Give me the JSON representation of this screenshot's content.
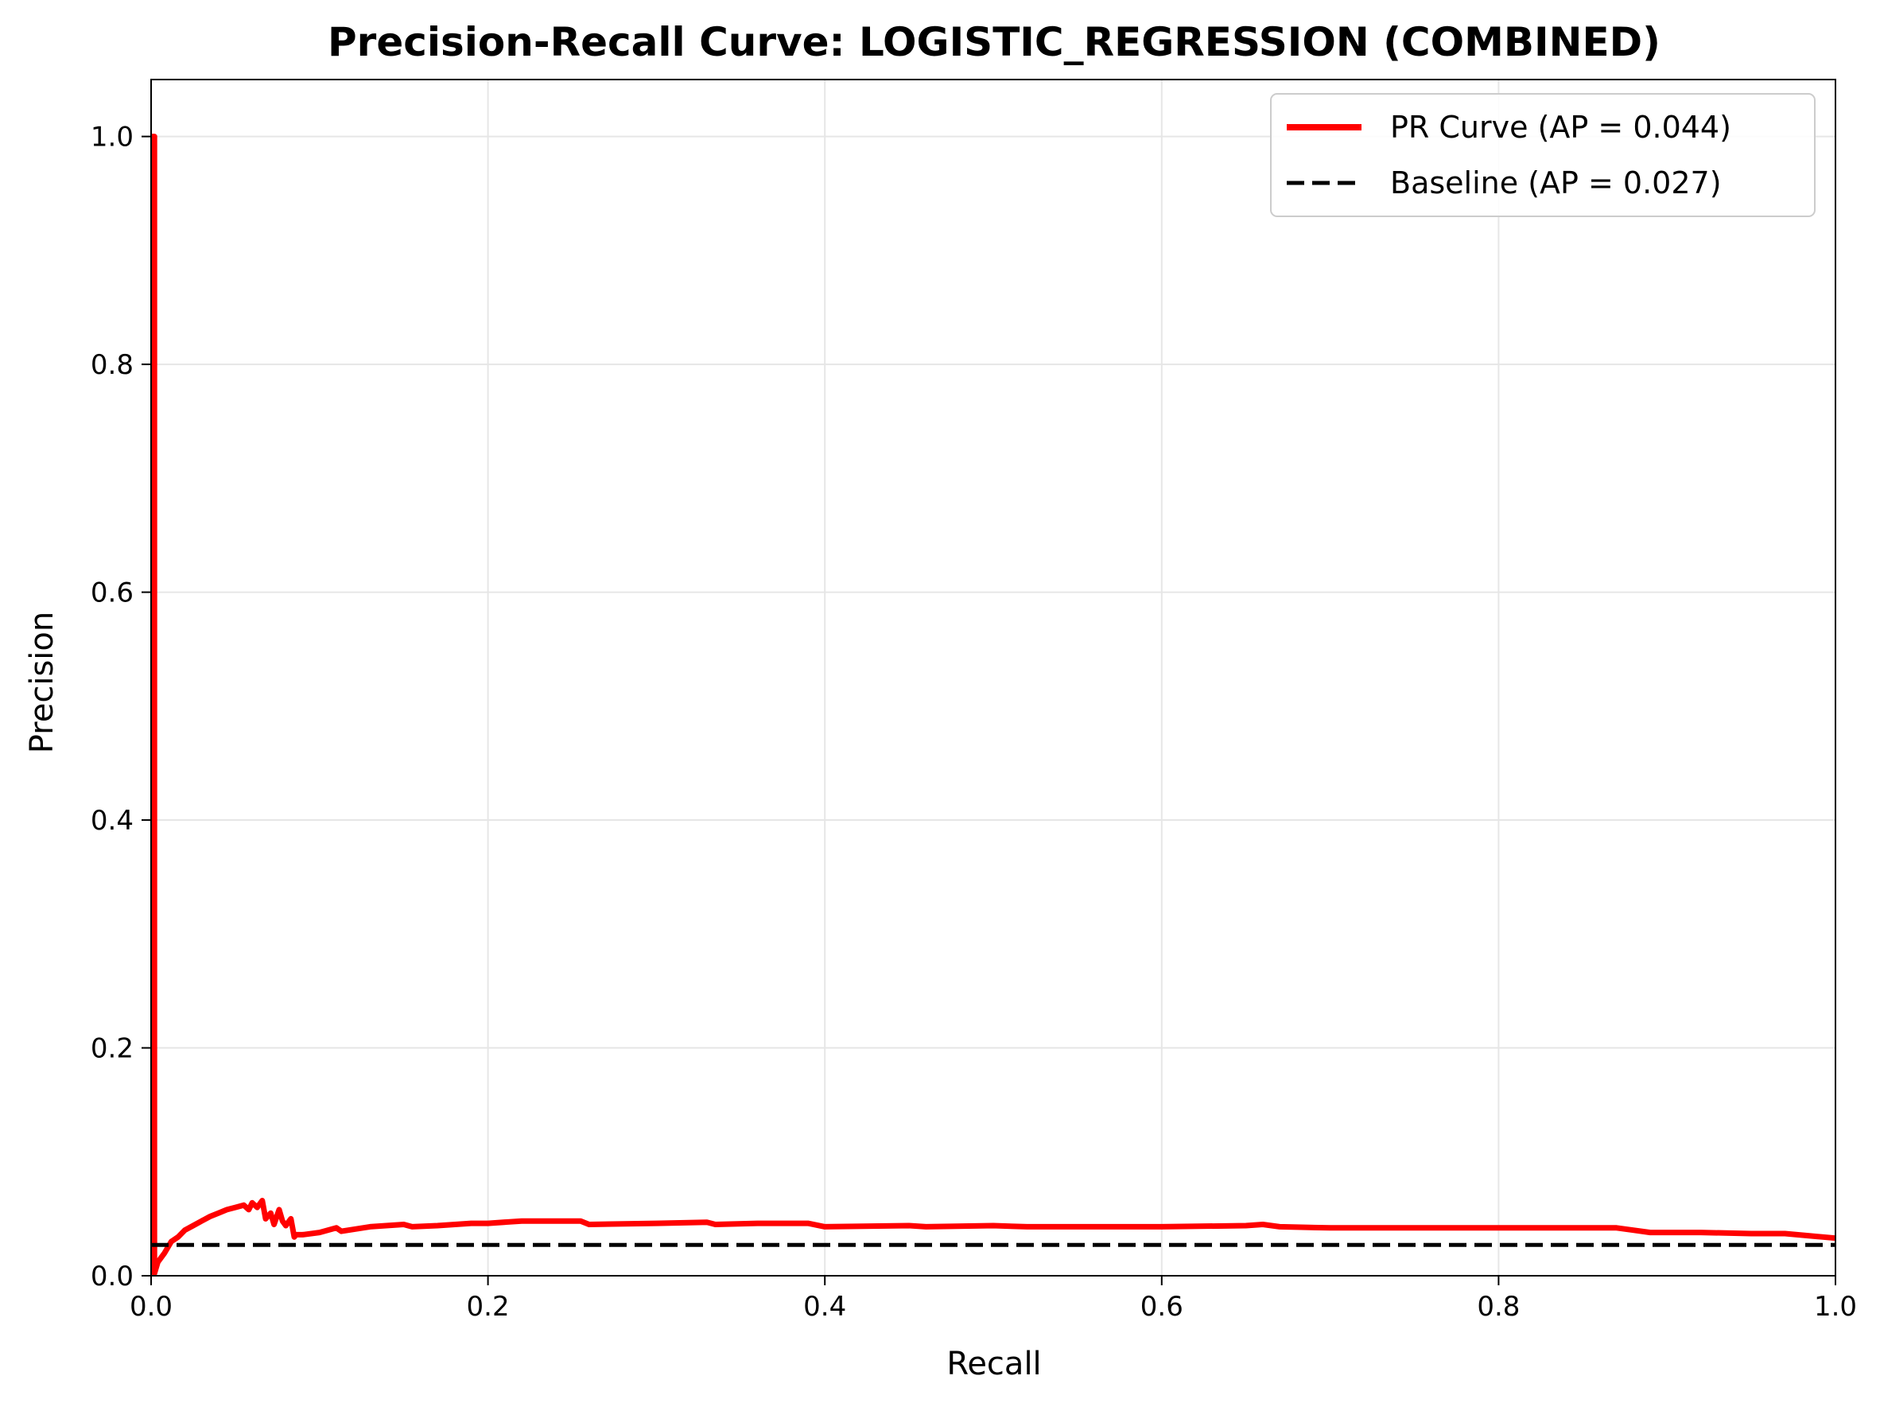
{
  "chart_data": {
    "type": "line",
    "title": "Precision-Recall Curve: LOGISTIC_REGRESSION (COMBINED)",
    "xlabel": "Recall",
    "ylabel": "Precision",
    "xlim": [
      0.0,
      1.0
    ],
    "ylim": [
      0.0,
      1.05
    ],
    "xticks": [
      "0.0",
      "0.2",
      "0.4",
      "0.6",
      "0.8",
      "1.0"
    ],
    "yticks": [
      "0.0",
      "0.2",
      "0.4",
      "0.6",
      "0.8",
      "1.0"
    ],
    "grid": true,
    "legend_position": "top-right",
    "series": [
      {
        "name": "PR Curve (AP = 0.044)",
        "color": "#ff0000",
        "style": "solid",
        "x": [
          0.0,
          0.002,
          0.002,
          0.004,
          0.008,
          0.012,
          0.016,
          0.02,
          0.025,
          0.03,
          0.035,
          0.04,
          0.045,
          0.05,
          0.055,
          0.058,
          0.06,
          0.063,
          0.066,
          0.068,
          0.071,
          0.073,
          0.076,
          0.078,
          0.08,
          0.083,
          0.085,
          0.086,
          0.09,
          0.1,
          0.11,
          0.113,
          0.13,
          0.15,
          0.155,
          0.17,
          0.19,
          0.2,
          0.22,
          0.24,
          0.255,
          0.26,
          0.3,
          0.33,
          0.335,
          0.36,
          0.39,
          0.4,
          0.45,
          0.46,
          0.5,
          0.52,
          0.55,
          0.6,
          0.65,
          0.66,
          0.67,
          0.7,
          0.75,
          0.8,
          0.82,
          0.84,
          0.87,
          0.88,
          0.89,
          0.92,
          0.95,
          0.97,
          0.985,
          1.0
        ],
        "y": [
          1.0,
          1.0,
          0.002,
          0.012,
          0.02,
          0.03,
          0.034,
          0.04,
          0.044,
          0.048,
          0.052,
          0.055,
          0.058,
          0.06,
          0.062,
          0.058,
          0.064,
          0.06,
          0.066,
          0.05,
          0.055,
          0.045,
          0.058,
          0.048,
          0.044,
          0.05,
          0.034,
          0.036,
          0.036,
          0.038,
          0.042,
          0.039,
          0.043,
          0.045,
          0.043,
          0.044,
          0.046,
          0.046,
          0.048,
          0.048,
          0.048,
          0.045,
          0.046,
          0.047,
          0.045,
          0.046,
          0.046,
          0.043,
          0.044,
          0.043,
          0.044,
          0.043,
          0.043,
          0.043,
          0.044,
          0.045,
          0.043,
          0.042,
          0.042,
          0.042,
          0.042,
          0.042,
          0.042,
          0.04,
          0.038,
          0.038,
          0.037,
          0.037,
          0.035,
          0.033
        ]
      },
      {
        "name": "Baseline (AP = 0.027)",
        "color": "#000000",
        "style": "dashed",
        "x": [
          0.0,
          1.0
        ],
        "y": [
          0.027,
          0.027
        ]
      }
    ]
  }
}
